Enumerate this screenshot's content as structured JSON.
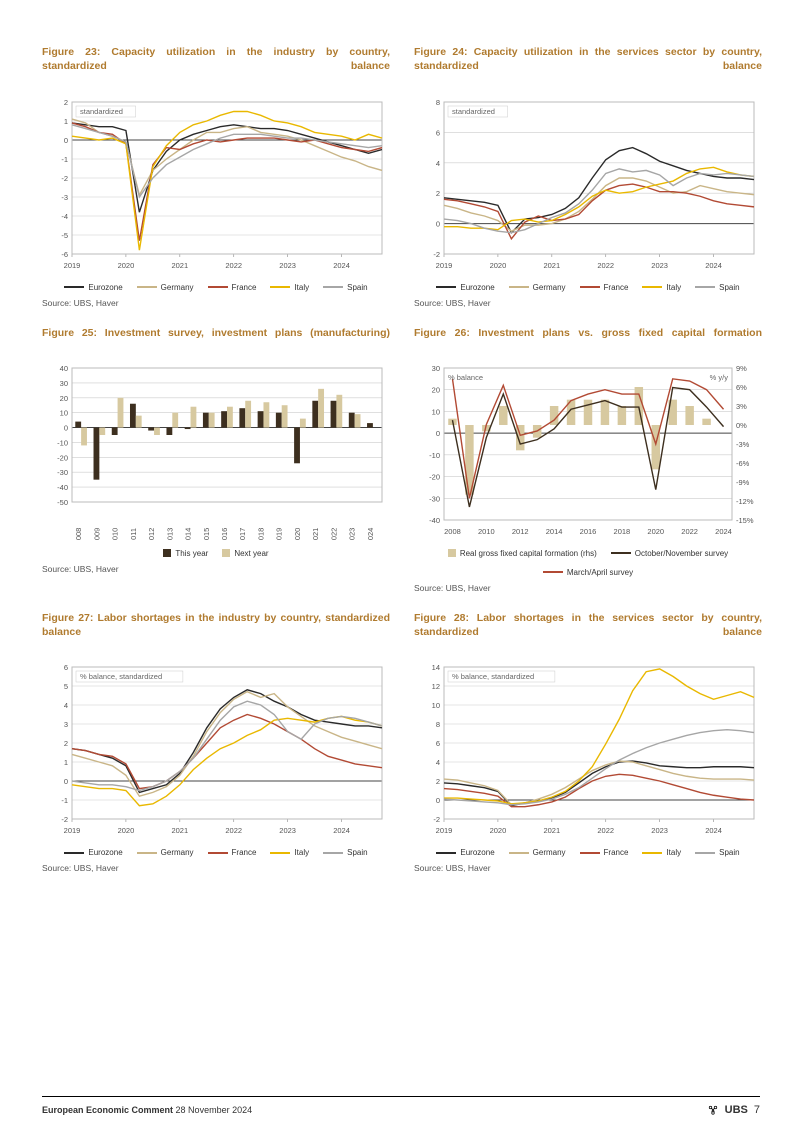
{
  "footer": {
    "report_title": "European Economic Comment",
    "date": "28 November 2024",
    "brand": "UBS",
    "page_number": "7"
  },
  "common": {
    "source_label": "Source: UBS, Haver",
    "countries": [
      "Eurozone",
      "Germany",
      "France",
      "Italy",
      "Spain"
    ],
    "country_colors": {
      "Eurozone": "#2a2a2a",
      "Germany": "#c9b587",
      "France": "#b24a34",
      "Italy": "#e9b800",
      "Spain": "#a6a6a6"
    }
  },
  "fig23": {
    "title": "Figure 23: Capacity utilization in the industry by country, standardized balance",
    "ylim": [
      -6,
      2
    ],
    "ystep": 1,
    "x_years": [
      2019,
      2020,
      2021,
      2022,
      2023,
      2024
    ],
    "x_per_year": 4,
    "annotation": "standardized",
    "series": {
      "Eurozone": [
        0.9,
        0.8,
        0.7,
        0.7,
        0.5,
        -3.8,
        -1.6,
        -0.6,
        0.0,
        0.3,
        0.5,
        0.7,
        0.8,
        0.7,
        0.6,
        0.6,
        0.5,
        0.3,
        0.1,
        -0.1,
        -0.3,
        -0.5,
        -0.7,
        -0.5
      ],
      "Germany": [
        1.1,
        0.9,
        0.4,
        0.2,
        -0.1,
        -2.9,
        -1.6,
        -1.0,
        -0.5,
        0.0,
        0.4,
        0.4,
        0.6,
        0.7,
        0.4,
        0.3,
        0.2,
        0.0,
        -0.3,
        -0.6,
        -0.9,
        -1.1,
        -1.4,
        -1.6
      ],
      "France": [
        0.9,
        0.7,
        0.4,
        0.3,
        -0.2,
        -5.3,
        -1.3,
        -0.4,
        -0.5,
        -0.2,
        0.0,
        -0.1,
        0.0,
        0.1,
        0.1,
        0.1,
        0.0,
        -0.1,
        0.0,
        -0.2,
        -0.4,
        -0.5,
        -0.6,
        -0.4
      ],
      "Italy": [
        0.2,
        0.1,
        0.0,
        0.1,
        -0.2,
        -5.8,
        -1.4,
        -0.3,
        0.4,
        0.8,
        1.0,
        1.3,
        1.5,
        1.5,
        1.3,
        1.0,
        0.9,
        0.7,
        0.4,
        0.3,
        0.2,
        0.0,
        0.3,
        0.1
      ],
      "Spain": [
        0.8,
        0.6,
        0.4,
        0.2,
        -0.1,
        -3.0,
        -2.0,
        -1.3,
        -0.9,
        -0.5,
        -0.2,
        0.1,
        0.3,
        0.3,
        0.3,
        0.2,
        0.1,
        0.1,
        0.0,
        -0.1,
        -0.2,
        -0.3,
        -0.4,
        -0.3
      ]
    }
  },
  "fig24": {
    "title": "Figure 24: Capacity utilization in the services sector by country, standardized balance",
    "ylim": [
      -2,
      8
    ],
    "ystep": 2,
    "x_years": [
      2019,
      2020,
      2021,
      2022,
      2023,
      2024
    ],
    "x_per_year": 4,
    "annotation": "standardized",
    "series": {
      "Eurozone": [
        1.7,
        1.6,
        1.5,
        1.4,
        1.2,
        -0.6,
        0.3,
        0.4,
        0.6,
        1.0,
        1.7,
        3.0,
        4.2,
        4.8,
        5.0,
        4.6,
        4.1,
        3.8,
        3.5,
        3.3,
        3.1,
        3.0,
        3.0,
        2.9
      ],
      "Germany": [
        1.2,
        1.0,
        0.7,
        0.5,
        0.2,
        -0.5,
        -0.1,
        -0.1,
        0.0,
        0.3,
        0.8,
        1.6,
        2.5,
        3.0,
        3.0,
        2.8,
        2.4,
        2.0,
        2.1,
        2.5,
        2.3,
        2.1,
        2.0,
        1.9
      ],
      "France": [
        1.6,
        1.5,
        1.3,
        1.1,
        0.8,
        -1.0,
        0.1,
        0.5,
        0.2,
        0.3,
        0.6,
        1.5,
        2.2,
        2.5,
        2.6,
        2.4,
        2.1,
        2.1,
        2.0,
        1.8,
        1.5,
        1.3,
        1.2,
        1.1
      ],
      "Italy": [
        -0.2,
        -0.2,
        -0.3,
        -0.3,
        -0.4,
        0.2,
        0.3,
        0.1,
        0.2,
        0.6,
        1.1,
        1.8,
        2.2,
        2.0,
        2.1,
        2.4,
        2.6,
        2.8,
        3.3,
        3.6,
        3.7,
        3.4,
        3.2,
        3.1
      ],
      "Spain": [
        0.3,
        0.2,
        0.0,
        -0.3,
        -0.5,
        -0.6,
        -0.4,
        0.0,
        0.4,
        0.7,
        1.3,
        2.2,
        3.3,
        3.6,
        3.4,
        3.5,
        3.2,
        2.5,
        3.0,
        3.3,
        3.2,
        3.3,
        3.2,
        3.1
      ]
    }
  },
  "fig25": {
    "title": "Figure 25: Investment survey, investment plans (manufacturing)",
    "ylim": [
      -50,
      40
    ],
    "ystep": 10,
    "years": [
      2008,
      2009,
      2010,
      2011,
      2012,
      2013,
      2014,
      2015,
      2016,
      2017,
      2018,
      2019,
      2020,
      2021,
      2022,
      2023,
      2024
    ],
    "bars": {
      "This year": [
        4,
        -35,
        -5,
        16,
        -2,
        -5,
        -1,
        10,
        11,
        13,
        11,
        10,
        -24,
        18,
        18,
        10,
        3
      ],
      "Next year": [
        -12,
        -5,
        20,
        8,
        -5,
        10,
        14,
        10,
        14,
        18,
        17,
        15,
        6,
        26,
        22,
        9,
        -99
      ]
    },
    "colors": {
      "This year": "#3d2f1f",
      "Next year": "#d7c9a0"
    },
    "missing": -99
  },
  "fig26": {
    "title": "Figure 26: Investment plans vs. gross fixed capital formation",
    "yleft": {
      "label": "% balance",
      "lim": [
        -40,
        30
      ],
      "step": 10
    },
    "yright": {
      "label": "% y/y",
      "lim": [
        -15,
        9
      ],
      "step": 3
    },
    "years": [
      2008,
      2009,
      2010,
      2011,
      2012,
      2013,
      2014,
      2015,
      2016,
      2017,
      2018,
      2019,
      2020,
      2021,
      2022,
      2023,
      2024
    ],
    "bars": {
      "label": "Real gross fixed capital formation (rhs)",
      "color": "#d7c9a0",
      "values": [
        1,
        -11,
        -1,
        3,
        -4,
        -2,
        3,
        4,
        4,
        4,
        3,
        6,
        -7,
        4,
        3,
        1,
        -99
      ]
    },
    "lines": {
      "October/November survey": {
        "color": "#3d2f1f",
        "values": [
          6,
          -34,
          -2,
          18,
          -5,
          -3,
          2,
          11,
          13,
          15,
          12,
          12,
          -26,
          21,
          20,
          12,
          3
        ]
      },
      "March/April survey": {
        "color": "#b24a34",
        "values": [
          25,
          -30,
          4,
          22,
          -1,
          1,
          6,
          15,
          18,
          20,
          18,
          18,
          -5,
          25,
          24,
          20,
          11
        ]
      }
    },
    "missing": -99
  },
  "fig27": {
    "title": "Figure 27: Labor shortages in the industry by country, standardized balance",
    "ylim": [
      -2,
      6
    ],
    "ystep": 1,
    "annotation": "% balance, standardized",
    "x_years": [
      2019,
      2020,
      2021,
      2022,
      2023,
      2024
    ],
    "x_per_year": 4,
    "series": {
      "Eurozone": [
        1.7,
        1.6,
        1.4,
        1.2,
        0.8,
        -0.6,
        -0.4,
        -0.2,
        0.4,
        1.5,
        2.8,
        3.8,
        4.4,
        4.8,
        4.6,
        4.2,
        3.9,
        3.5,
        3.2,
        3.1,
        3.0,
        2.9,
        2.9,
        2.8
      ],
      "Germany": [
        1.4,
        1.2,
        1.0,
        0.8,
        0.3,
        -0.8,
        -0.6,
        -0.3,
        0.3,
        1.3,
        2.6,
        3.6,
        4.3,
        4.7,
        4.4,
        4.6,
        3.9,
        3.4,
        2.9,
        2.6,
        2.3,
        2.1,
        1.9,
        1.7
      ],
      "France": [
        1.7,
        1.6,
        1.4,
        1.3,
        0.9,
        -0.4,
        -0.3,
        0.0,
        0.5,
        1.2,
        2.0,
        2.8,
        3.2,
        3.5,
        3.3,
        3.0,
        2.6,
        2.2,
        1.7,
        1.3,
        1.1,
        0.9,
        0.8,
        0.7
      ],
      "Italy": [
        -0.2,
        -0.3,
        -0.4,
        -0.4,
        -0.5,
        -1.3,
        -1.2,
        -0.8,
        -0.2,
        0.6,
        1.2,
        1.7,
        2.0,
        2.4,
        2.7,
        3.2,
        3.3,
        3.2,
        3.1,
        3.3,
        3.4,
        3.2,
        3.1,
        2.9
      ],
      "Spain": [
        0.0,
        -0.1,
        -0.2,
        -0.2,
        -0.3,
        -0.5,
        -0.3,
        0.0,
        0.5,
        1.2,
        2.2,
        3.2,
        3.9,
        4.2,
        4.0,
        3.5,
        2.6,
        2.2,
        3.0,
        3.3,
        3.4,
        3.3,
        3.1,
        2.9
      ]
    }
  },
  "fig28": {
    "title": "Figure 28: Labor shortages in the services sector by country, standardized balance",
    "ylim": [
      -2,
      14
    ],
    "ystep": 2,
    "annotation": "% balance, standardized",
    "x_years": [
      2019,
      2020,
      2021,
      2022,
      2023,
      2024
    ],
    "x_per_year": 4,
    "series": {
      "Eurozone": [
        1.8,
        1.7,
        1.5,
        1.3,
        0.9,
        -0.6,
        -0.3,
        -0.1,
        0.2,
        0.8,
        1.8,
        2.8,
        3.5,
        4.0,
        4.1,
        3.9,
        3.6,
        3.5,
        3.4,
        3.4,
        3.5,
        3.5,
        3.5,
        3.4
      ],
      "Germany": [
        2.2,
        2.1,
        1.8,
        1.5,
        1.0,
        -0.5,
        -0.3,
        0.1,
        0.6,
        1.3,
        2.2,
        3.1,
        3.7,
        4.1,
        4.0,
        3.6,
        3.2,
        2.8,
        2.5,
        2.3,
        2.2,
        2.2,
        2.2,
        2.1
      ],
      "France": [
        1.2,
        1.1,
        0.9,
        0.7,
        0.4,
        -0.7,
        -0.7,
        -0.5,
        -0.2,
        0.3,
        1.2,
        2.0,
        2.5,
        2.7,
        2.6,
        2.3,
        2.0,
        1.6,
        1.2,
        0.8,
        0.5,
        0.3,
        0.1,
        0.0
      ],
      "Italy": [
        0.2,
        0.2,
        0.1,
        0.0,
        -0.1,
        -0.4,
        -0.3,
        -0.1,
        0.3,
        0.9,
        2.0,
        3.5,
        5.9,
        8.5,
        11.5,
        13.5,
        13.8,
        13.0,
        12.0,
        11.2,
        10.6,
        11.0,
        11.4,
        10.8
      ],
      "Spain": [
        0.1,
        0.0,
        -0.1,
        -0.2,
        -0.3,
        -0.5,
        -0.4,
        -0.2,
        0.1,
        0.6,
        1.3,
        2.3,
        3.3,
        4.2,
        4.9,
        5.5,
        6.0,
        6.4,
        6.8,
        7.1,
        7.3,
        7.4,
        7.3,
        7.1
      ]
    }
  }
}
